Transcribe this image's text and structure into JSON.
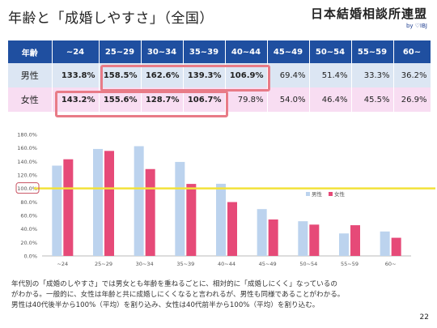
{
  "title": "年齢と「成婚しやすさ」（全国）",
  "logo": {
    "name": "日本結婚相談所連盟",
    "sub": "by ♡IBJ"
  },
  "table": {
    "header": [
      "年齢",
      "~24",
      "25~29",
      "30~34",
      "35~39",
      "40~44",
      "45~49",
      "50~54",
      "55~59",
      "60~"
    ],
    "male": {
      "label": "男性",
      "values": [
        "133.8%",
        "158.5%",
        "162.6%",
        "139.3%",
        "106.9%",
        "69.4%",
        "51.4%",
        "33.3%",
        "36.2%"
      ]
    },
    "female": {
      "label": "女性",
      "values": [
        "143.2%",
        "155.6%",
        "128.7%",
        "106.7%",
        "79.8%",
        "54.0%",
        "46.4%",
        "45.5%",
        "26.9%"
      ]
    }
  },
  "chart_data": {
    "type": "bar",
    "categories": [
      "~24",
      "25~29",
      "30~34",
      "35~39",
      "40~44",
      "45~49",
      "50~54",
      "55~59",
      "60~"
    ],
    "series": [
      {
        "name": "男性",
        "values": [
          133.8,
          158.5,
          162.6,
          139.3,
          106.9,
          69.4,
          51.4,
          33.3,
          36.2
        ],
        "color": "#bcd3ee"
      },
      {
        "name": "女性",
        "values": [
          143.2,
          155.6,
          128.7,
          106.7,
          79.8,
          54.0,
          46.4,
          45.5,
          26.9
        ],
        "color": "#e64a78"
      }
    ],
    "ylim": [
      0,
      180
    ],
    "yticks": [
      "0.0%",
      "20.0%",
      "40.0%",
      "60.0%",
      "80.0%",
      "100.0%",
      "120.0%",
      "140.0%",
      "160.0%",
      "180.0%"
    ],
    "reference_line": 100,
    "reference_color": "#f2e23a",
    "legend_position": "right",
    "grid": false
  },
  "note": [
    "年代別の「成婚のしやすさ」では男女とも年齢を重ねるごとに、相対的に「成婚しにくく」なっているの",
    "がわかる。一般的に、女性は年齢と共に成婚しにくくなると言われるが、男性も同様であることがわかる。",
    "男性は40代後半から100%（平均）を割り込み、女性は40代前半から100%（平均）を割り込む。"
  ],
  "page_number": "22",
  "colors": {
    "header": "#1f4fa0",
    "male_row": "#dce6f3",
    "female_row": "#f8ddf2",
    "highlight": "#e87b87"
  }
}
